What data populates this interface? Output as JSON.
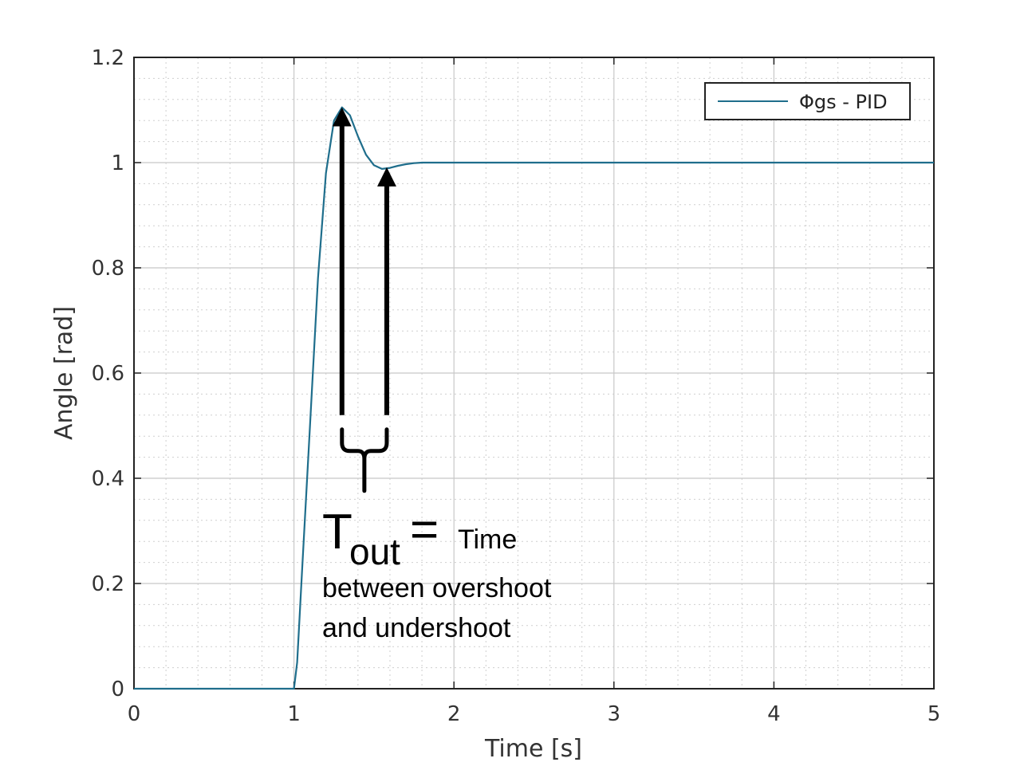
{
  "chart_data": {
    "type": "line",
    "xlabel": "Time [s]",
    "ylabel": "Angle [rad]",
    "xlim": [
      0,
      5
    ],
    "ylim": [
      0,
      1.2
    ],
    "xticks": [
      "0",
      "1",
      "2",
      "3",
      "4",
      "5"
    ],
    "yticks": [
      "0",
      "0.2",
      "0.4",
      "0.6",
      "0.8",
      "1",
      "1.2"
    ],
    "grid": true,
    "minor_grid": true,
    "legend_position": "top-right",
    "series": [
      {
        "name": "Φgs - PID",
        "color": "#1f6e8c",
        "x": [
          0,
          1.0,
          1.02,
          1.05,
          1.1,
          1.15,
          1.2,
          1.25,
          1.3,
          1.35,
          1.4,
          1.45,
          1.5,
          1.55,
          1.6,
          1.65,
          1.7,
          1.75,
          1.8,
          2.0,
          3.0,
          4.0,
          5.0
        ],
        "y": [
          0,
          0,
          0.05,
          0.22,
          0.5,
          0.78,
          0.98,
          1.08,
          1.105,
          1.09,
          1.05,
          1.015,
          0.995,
          0.988,
          0.99,
          0.994,
          0.997,
          0.999,
          1.0,
          1.0,
          1.0,
          1.0,
          1.0
        ]
      }
    ],
    "annotations": {
      "overshoot_time": 1.3,
      "overshoot_value": 1.105,
      "undershoot_time": 1.58,
      "undershoot_value": 0.988,
      "arrow_base_value": 0.52,
      "symbol_main": "T",
      "symbol_sub": "out",
      "equals": "=",
      "line1": "Time",
      "line2": "between overshoot",
      "line3": "and undershoot"
    }
  }
}
